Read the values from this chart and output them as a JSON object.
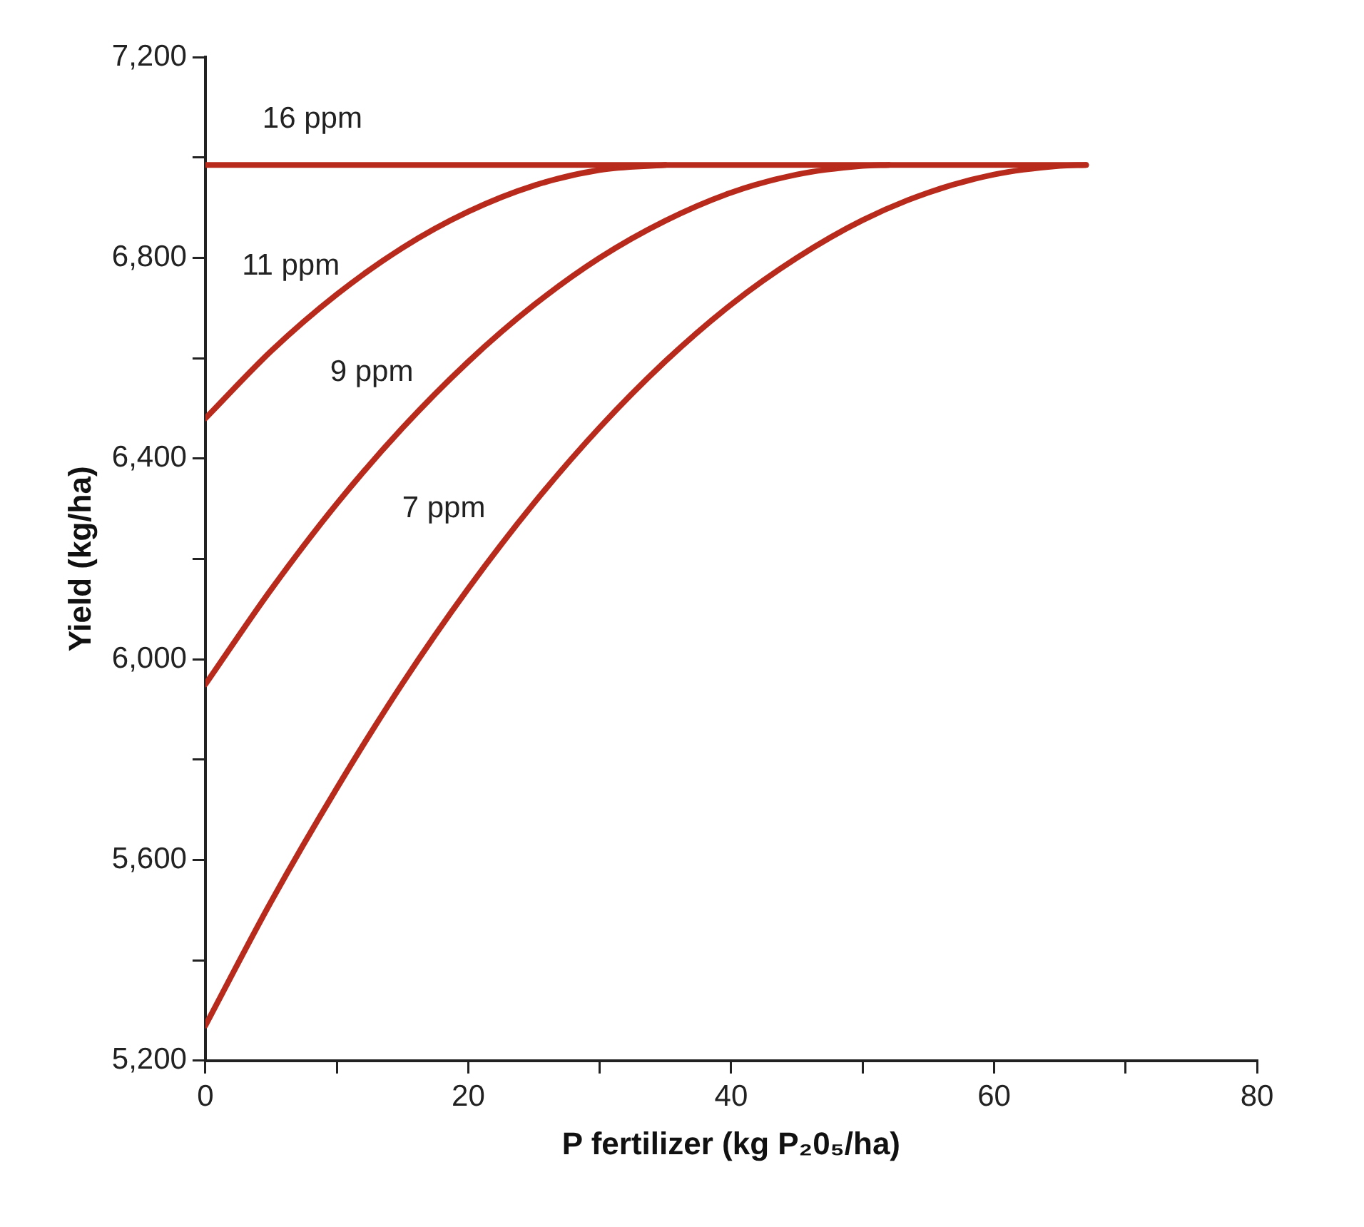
{
  "chart_data": {
    "type": "line",
    "xlabel": "P fertilizer (kg P₂0₅/ha)",
    "ylabel": "Yield (kg/ha)",
    "xlim": [
      0,
      80
    ],
    "xticks": [
      0,
      {
        "value": 10,
        "label": null
      },
      20,
      {
        "value": 30,
        "label": null
      },
      40,
      {
        "value": 50,
        "label": null
      },
      60,
      {
        "value": 70,
        "label": null
      },
      80
    ],
    "ylim": [
      5200,
      7200
    ],
    "yticks": [
      {
        "value": 5200,
        "label": "5,200"
      },
      {
        "value": 5400,
        "label": null
      },
      {
        "value": 5600,
        "label": "5,600"
      },
      {
        "value": 5800,
        "label": null
      },
      {
        "value": 6000,
        "label": "6,000"
      },
      {
        "value": 6200,
        "label": null
      },
      {
        "value": 6400,
        "label": "6,400"
      },
      {
        "value": 6600,
        "label": null
      },
      {
        "value": 6800,
        "label": "6,800"
      },
      {
        "value": 7000,
        "label": null
      },
      {
        "value": 7200,
        "label": "7,200"
      }
    ],
    "grid": false,
    "legend": false,
    "marker": "none",
    "line_style": "solid",
    "series": [
      {
        "name": "16 ppm",
        "color": "#b82a1c",
        "x": [
          0,
          67
        ],
        "values": [
          6985,
          6985
        ]
      },
      {
        "name": "11 ppm",
        "color": "#b82a1c",
        "x": [
          0,
          5,
          10,
          15,
          20,
          25,
          30,
          35
        ],
        "values": [
          6480,
          6614,
          6727,
          6820,
          6892,
          6944,
          6975,
          6985
        ]
      },
      {
        "name": "9 ppm",
        "color": "#b82a1c",
        "x": [
          0,
          5,
          10,
          15,
          20,
          25,
          30,
          35,
          40,
          45,
          50,
          52
        ],
        "values": [
          5950,
          6139,
          6310,
          6461,
          6593,
          6706,
          6800,
          6874,
          6930,
          6966,
          6983,
          6985
        ]
      },
      {
        "name": "7 ppm",
        "color": "#b82a1c",
        "x": [
          0,
          5,
          10,
          15,
          20,
          25,
          30,
          35,
          40,
          45,
          50,
          55,
          60,
          65,
          67
        ],
        "values": [
          5270,
          5517,
          5743,
          5952,
          6141,
          6311,
          6462,
          6594,
          6707,
          6800,
          6875,
          6930,
          6966,
          6983,
          6985
        ]
      }
    ]
  }
}
